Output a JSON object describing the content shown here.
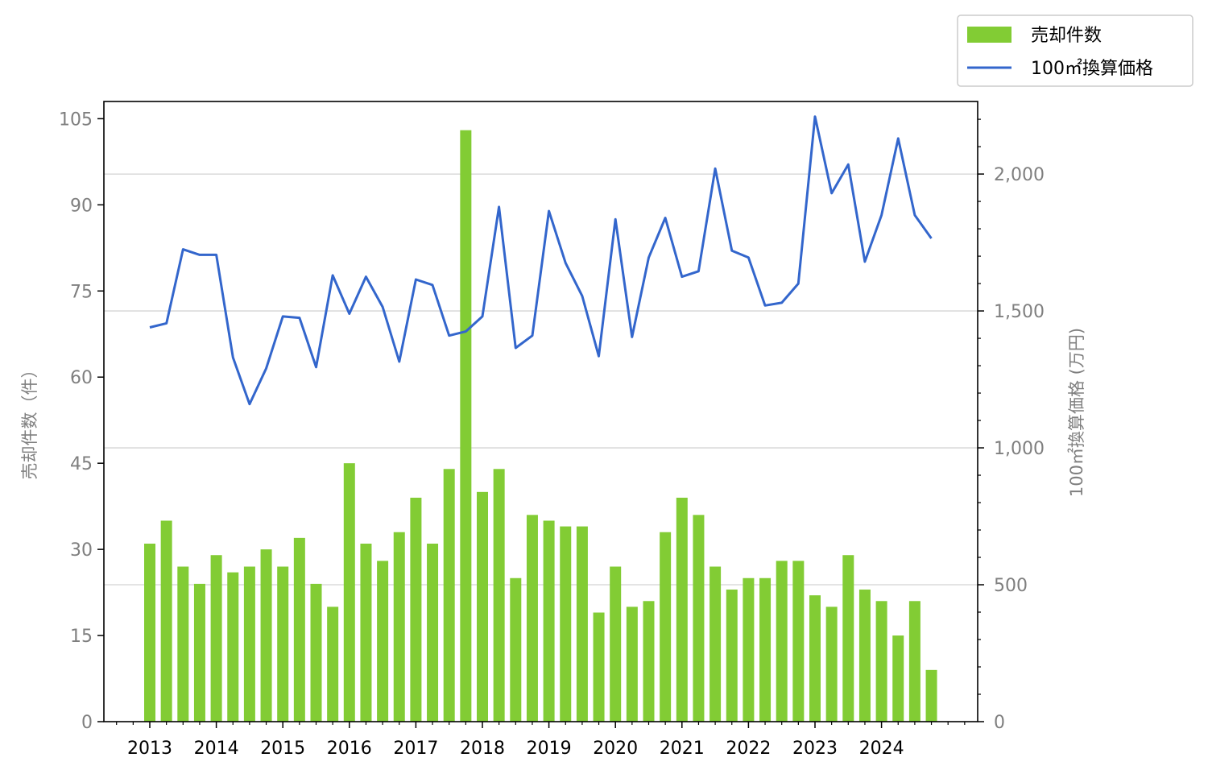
{
  "chart_data": {
    "type": "bar",
    "x_tick_labels": [
      "2013",
      "2014",
      "2015",
      "2016",
      "2017",
      "2018",
      "2019",
      "2020",
      "2021",
      "2022",
      "2023",
      "2024"
    ],
    "y_left": {
      "label": "売却件数（件）",
      "lim": [
        0,
        108
      ],
      "ticks": [
        "0",
        "15",
        "30",
        "45",
        "60",
        "75",
        "90",
        "105"
      ]
    },
    "y_right": {
      "label": "100㎡換算価格 (万円)",
      "lim": [
        0,
        2265
      ],
      "ticks": [
        "0",
        "500",
        "1,000",
        "1,500",
        "2,000"
      ]
    },
    "grid": "horizontal (right axis)",
    "legend": {
      "placement": "top-right, outside plot"
    },
    "series": [
      {
        "name": "売却件数",
        "type": "bar",
        "color": "#82cc34",
        "axis": "left",
        "values": [
          31,
          35,
          27,
          24,
          29,
          26,
          27,
          30,
          27,
          32,
          24,
          20,
          45,
          31,
          28,
          33,
          39,
          31,
          44,
          103,
          40,
          44,
          25,
          36,
          35,
          34,
          34,
          19,
          27,
          20,
          21,
          33,
          39,
          36,
          27,
          23,
          25,
          25,
          28,
          28,
          22,
          20,
          29,
          23,
          21,
          15,
          21,
          9
        ]
      },
      {
        "name": "100㎡換算価格",
        "type": "line",
        "color": "#3366cc",
        "axis": "right",
        "values": [
          1440,
          1455,
          1725,
          1705,
          1705,
          1330,
          1160,
          1290,
          1480,
          1475,
          1295,
          1630,
          1490,
          1625,
          1515,
          1315,
          1615,
          1595,
          1410,
          1425,
          1480,
          1880,
          1365,
          1410,
          1865,
          1675,
          1555,
          1335,
          1835,
          1405,
          1695,
          1840,
          1625,
          1645,
          2020,
          1720,
          1695,
          1520,
          1530,
          1600,
          2210,
          1930,
          2035,
          1680,
          1850,
          2130,
          1850,
          1765
        ]
      }
    ]
  }
}
